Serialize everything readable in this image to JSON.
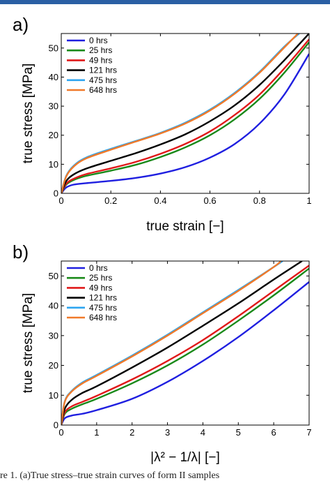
{
  "chart_data": [
    {
      "type": "line",
      "panel_label": "a)",
      "xlabel": "true strain [−]",
      "ylabel": "true stress [MPa]",
      "xlim": [
        0,
        1
      ],
      "ylim": [
        0,
        55
      ],
      "xticks": [
        0,
        0.2,
        0.4,
        0.6,
        0.8,
        1
      ],
      "xtick_labels": [
        "0",
        "0.2",
        "0.4",
        "0.6",
        "0.8",
        "1"
      ],
      "yticks": [
        0,
        10,
        20,
        30,
        40,
        50
      ],
      "ytick_labels": [
        "0",
        "10",
        "20",
        "30",
        "40",
        "50"
      ],
      "grid": false,
      "legend_position": "top-left",
      "series": [
        {
          "name": "0 hrs",
          "color": "#1f1fe0",
          "x": [
            0,
            0.02,
            0.05,
            0.1,
            0.2,
            0.3,
            0.4,
            0.5,
            0.6,
            0.7,
            0.8,
            0.9,
            1.0
          ],
          "y": [
            0,
            2.0,
            3.0,
            3.5,
            4.3,
            5.3,
            6.8,
            9.0,
            12.3,
            17.0,
            24.0,
            34.0,
            48.0
          ]
        },
        {
          "name": "25 hrs",
          "color": "#1a8a1a",
          "x": [
            0,
            0.02,
            0.05,
            0.1,
            0.2,
            0.3,
            0.4,
            0.5,
            0.6,
            0.7,
            0.8,
            0.9,
            1.0
          ],
          "y": [
            0,
            3.0,
            4.6,
            6.0,
            7.8,
            9.8,
            12.5,
            15.8,
            20.0,
            25.5,
            32.5,
            41.5,
            52.0
          ]
        },
        {
          "name": "49 hrs",
          "color": "#e01a1a",
          "x": [
            0,
            0.02,
            0.05,
            0.1,
            0.2,
            0.3,
            0.4,
            0.5,
            0.6,
            0.7,
            0.8,
            0.9,
            1.0
          ],
          "y": [
            0,
            3.3,
            5.0,
            6.6,
            8.6,
            10.8,
            13.6,
            17.0,
            21.3,
            27.0,
            34.0,
            43.0,
            53.0
          ]
        },
        {
          "name": "121 hrs",
          "color": "#000000",
          "x": [
            0,
            0.02,
            0.05,
            0.1,
            0.2,
            0.3,
            0.4,
            0.5,
            0.6,
            0.7,
            0.8,
            0.9,
            1.0
          ],
          "y": [
            0,
            4.2,
            6.5,
            8.5,
            11.2,
            13.8,
            16.8,
            20.3,
            24.8,
            30.3,
            37.3,
            45.8,
            55.0
          ]
        },
        {
          "name": "475 hrs",
          "color": "#2ea5f0",
          "x": [
            0,
            0.02,
            0.05,
            0.1,
            0.2,
            0.3,
            0.4,
            0.5,
            0.6,
            0.7,
            0.8,
            0.9,
            0.96
          ],
          "y": [
            0,
            6.0,
            9.5,
            12.3,
            15.3,
            18.0,
            20.8,
            24.3,
            28.8,
            34.6,
            41.8,
            50.5,
            55.0
          ]
        },
        {
          "name": "648 hrs",
          "color": "#f07a2a",
          "x": [
            0,
            0.02,
            0.05,
            0.1,
            0.2,
            0.3,
            0.4,
            0.5,
            0.6,
            0.7,
            0.8,
            0.9,
            0.955
          ],
          "y": [
            0,
            5.8,
            9.2,
            12.0,
            15.0,
            17.8,
            20.6,
            24.0,
            28.5,
            34.3,
            41.5,
            50.2,
            55.0
          ]
        }
      ]
    },
    {
      "type": "line",
      "panel_label": "b)",
      "xlabel": "|λ² − 1/λ| [−]",
      "ylabel": "true stress [MPa]",
      "xlim": [
        0,
        7
      ],
      "ylim": [
        0,
        55
      ],
      "xticks": [
        0,
        1,
        2,
        3,
        4,
        5,
        6,
        7
      ],
      "xtick_labels": [
        "0",
        "1",
        "2",
        "3",
        "4",
        "5",
        "6",
        "7"
      ],
      "yticks": [
        0,
        10,
        20,
        30,
        40,
        50
      ],
      "ytick_labels": [
        "0",
        "10",
        "20",
        "30",
        "40",
        "50"
      ],
      "grid": false,
      "legend_position": "top-left",
      "series": [
        {
          "name": "0 hrs",
          "color": "#1f1fe0",
          "x": [
            0,
            0.1,
            0.3,
            0.6,
            1,
            2,
            3,
            4,
            5,
            6,
            7
          ],
          "y": [
            0,
            2.3,
            3.2,
            3.8,
            5.0,
            8.8,
            14.5,
            21.5,
            29.5,
            38.5,
            48.0
          ]
        },
        {
          "name": "25 hrs",
          "color": "#1a8a1a",
          "x": [
            0,
            0.1,
            0.3,
            0.6,
            1,
            2,
            3,
            4,
            5,
            6,
            7
          ],
          "y": [
            0,
            3.8,
            5.5,
            7.0,
            8.8,
            14.0,
            20.0,
            27.0,
            35.0,
            43.5,
            52.5
          ]
        },
        {
          "name": "49 hrs",
          "color": "#e01a1a",
          "x": [
            0,
            0.1,
            0.3,
            0.6,
            1,
            2,
            3,
            4,
            5,
            6,
            7
          ],
          "y": [
            0,
            4.3,
            6.3,
            7.8,
            9.8,
            15.3,
            21.5,
            28.5,
            36.5,
            45.0,
            53.5
          ]
        },
        {
          "name": "121 hrs",
          "color": "#000000",
          "x": [
            0,
            0.1,
            0.3,
            0.6,
            1,
            2,
            3,
            4,
            5,
            6,
            6.8
          ],
          "y": [
            0,
            5.5,
            8.5,
            10.8,
            13.0,
            19.3,
            26.0,
            33.3,
            40.8,
            48.8,
            55.0
          ]
        },
        {
          "name": "475 hrs",
          "color": "#2ea5f0",
          "x": [
            0,
            0.1,
            0.3,
            0.6,
            1,
            2,
            3,
            4,
            5,
            6,
            6.25
          ],
          "y": [
            0,
            8.0,
            11.5,
            14.3,
            16.8,
            23.3,
            30.3,
            37.8,
            45.3,
            53.0,
            55.0
          ]
        },
        {
          "name": "648 hrs",
          "color": "#f07a2a",
          "x": [
            0,
            0.1,
            0.3,
            0.6,
            1,
            2,
            3,
            4,
            5,
            6,
            6.2
          ],
          "y": [
            0,
            7.8,
            11.3,
            14.0,
            16.5,
            23.0,
            30.0,
            37.5,
            45.0,
            53.0,
            55.0
          ]
        }
      ]
    }
  ],
  "caption": "re 1. (a)True stress–true strain curves of form II samples"
}
